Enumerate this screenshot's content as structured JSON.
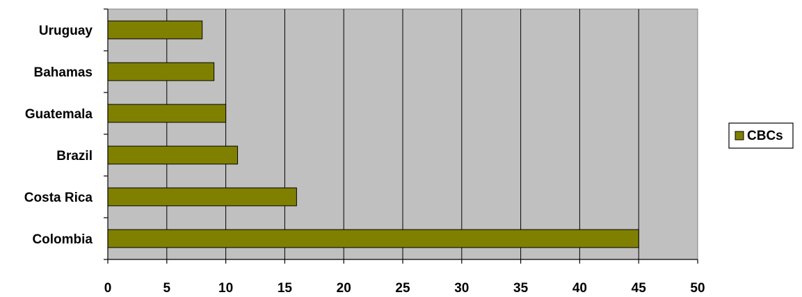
{
  "chart_data": {
    "type": "bar",
    "orientation": "horizontal",
    "categories": [
      "Colombia",
      "Costa Rica",
      "Brazil",
      "Guatemala",
      "Bahamas",
      "Uruguay"
    ],
    "series": [
      {
        "name": "CBCs",
        "values": [
          45,
          16,
          11,
          10,
          9,
          8
        ],
        "color": "#808000"
      }
    ],
    "xlim": [
      0,
      50
    ],
    "xticks": [
      0,
      5,
      10,
      15,
      20,
      25,
      30,
      35,
      40,
      45,
      50
    ],
    "grid": true,
    "legend_position": "right",
    "plot_background": "#c0c0c0",
    "title": "",
    "xlabel": "",
    "ylabel": ""
  }
}
